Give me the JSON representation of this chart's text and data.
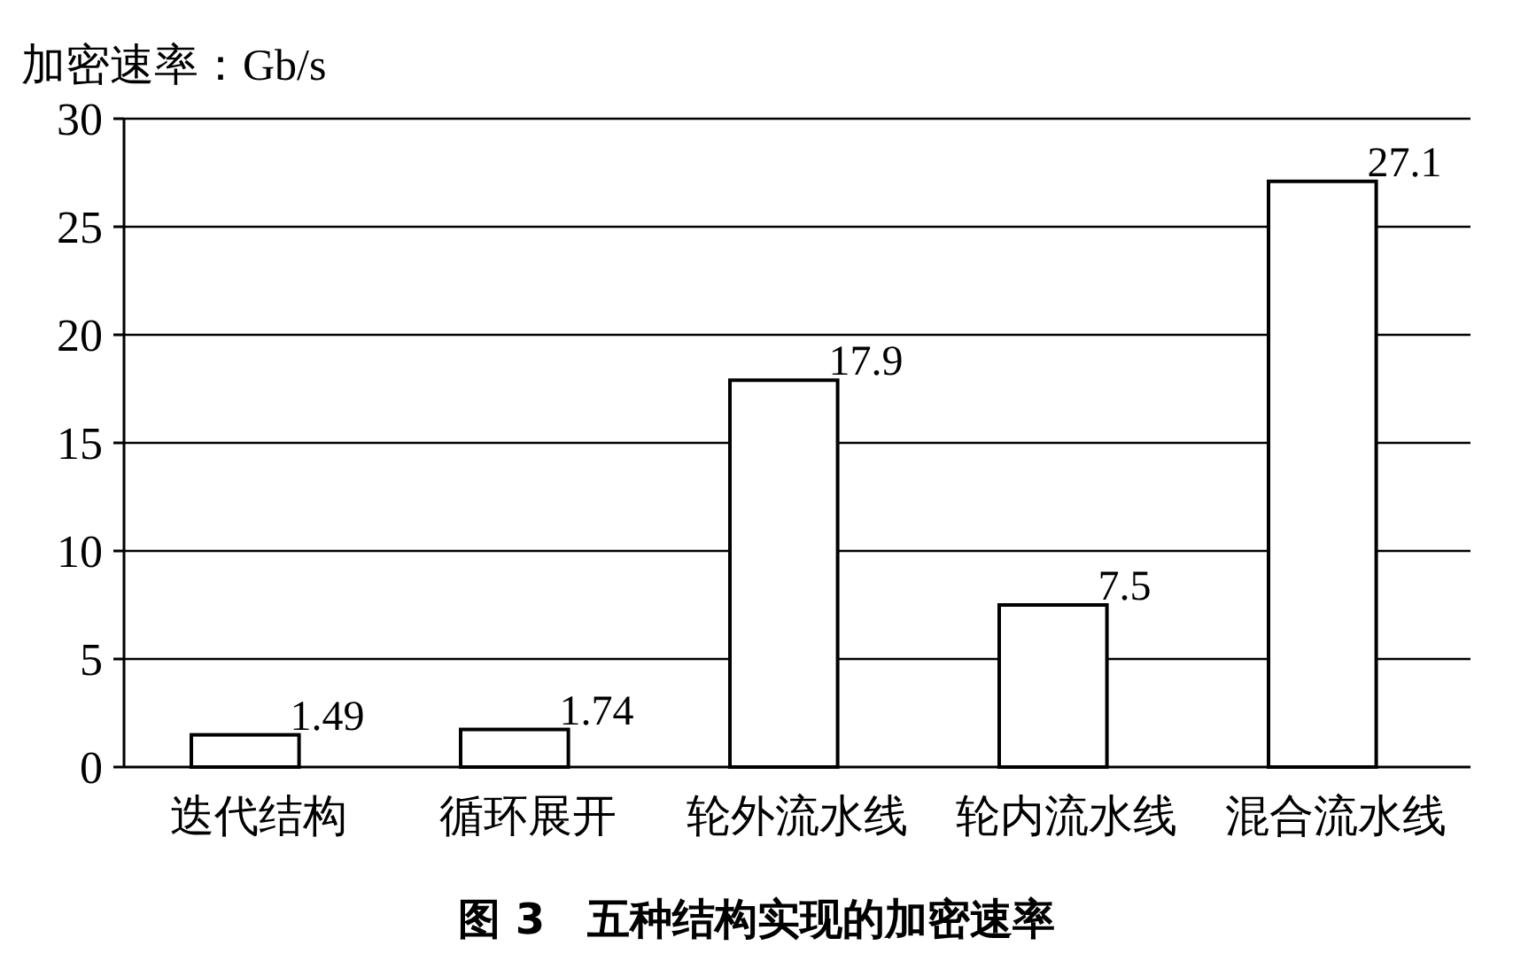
{
  "chart_data": {
    "type": "bar",
    "ylabel": "加密速率：Gb/s",
    "categories": [
      "迭代结构",
      "循环展开",
      "轮外流水线",
      "轮内流水线",
      "混合流水线"
    ],
    "values": [
      1.49,
      1.74,
      17.9,
      7.5,
      27.1
    ],
    "color": "#ffffff",
    "ylim": [
      0,
      30
    ],
    "yticks": [
      0,
      5,
      10,
      15,
      20,
      25,
      30
    ],
    "grid": "y",
    "data_labels": true,
    "annotations": [
      "图 3　五种结构实现的加密速率"
    ]
  }
}
